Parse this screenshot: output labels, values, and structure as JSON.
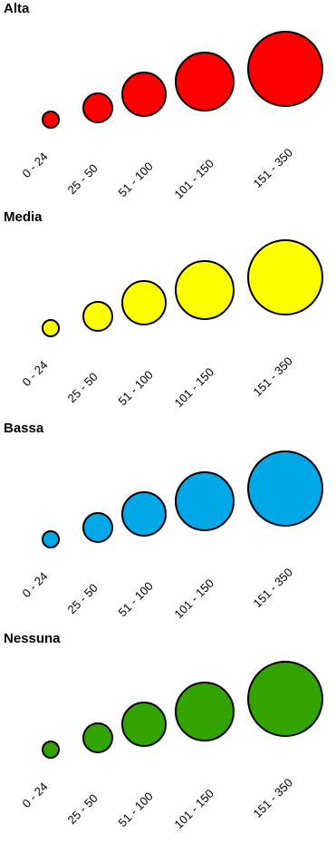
{
  "chart_data": {
    "type": "scatter",
    "size_classes": [
      "0 - 24",
      "25 - 50",
      "51 - 100",
      "101 - 150",
      "151 - 350"
    ],
    "groups": [
      {
        "name": "Alta",
        "color": "#ff0000"
      },
      {
        "name": "Media",
        "color": "#ffff00"
      },
      {
        "name": "Bassa",
        "color": "#00a8e8"
      },
      {
        "name": "Nessuna",
        "color": "#33a300"
      }
    ]
  }
}
